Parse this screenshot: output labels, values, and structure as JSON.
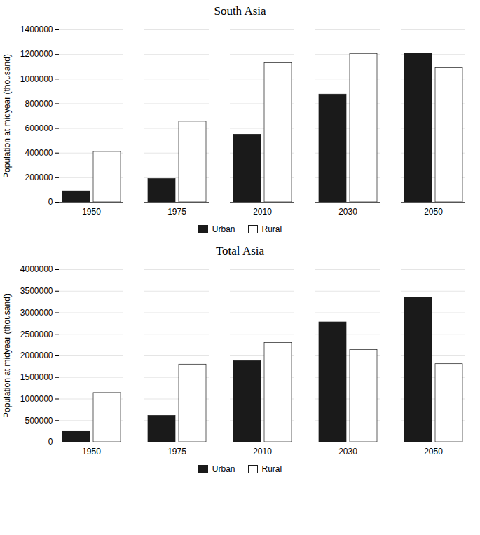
{
  "chart_data": [
    {
      "type": "bar",
      "title": "South Asia",
      "categories": [
        "1950",
        "1975",
        "2010",
        "2030",
        "2050"
      ],
      "series": [
        {
          "name": "Urban",
          "color": "#1a1a1a",
          "values": [
            90000,
            190000,
            550000,
            875000,
            1210000
          ]
        },
        {
          "name": "Rural",
          "color": "#ffffff",
          "values": [
            410000,
            655000,
            1130000,
            1205000,
            1090000
          ]
        }
      ],
      "ylabel": "Population at midyear (thousand)",
      "ylim": [
        0,
        1400000
      ],
      "yticks": [
        0,
        200000,
        400000,
        600000,
        800000,
        1000000,
        1200000,
        1400000
      ],
      "grid": true,
      "legend": "bottom"
    },
    {
      "type": "bar",
      "title": "Total Asia",
      "categories": [
        "1950",
        "1975",
        "2010",
        "2030",
        "2050"
      ],
      "series": [
        {
          "name": "Urban",
          "color": "#1a1a1a",
          "values": [
            255000,
            610000,
            1880000,
            2780000,
            3360000
          ]
        },
        {
          "name": "Rural",
          "color": "#ffffff",
          "values": [
            1140000,
            1800000,
            2300000,
            2140000,
            1810000
          ]
        }
      ],
      "ylabel": "Population at midyear (thousand)",
      "ylim": [
        0,
        4000000
      ],
      "yticks": [
        0,
        500000,
        1000000,
        1500000,
        2000000,
        2500000,
        3000000,
        3500000,
        4000000
      ],
      "grid": true,
      "legend": "bottom"
    }
  ]
}
